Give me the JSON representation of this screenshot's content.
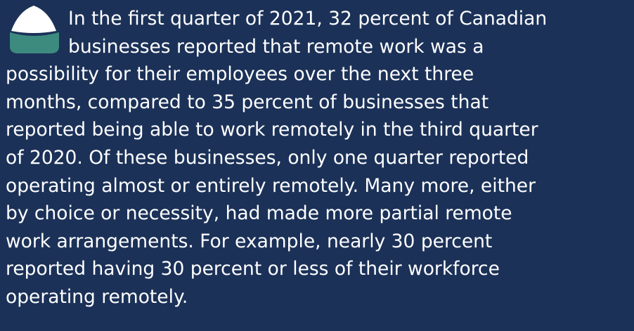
{
  "text": {
    "lines": [
      "In the first quarter of 2021, 32 percent of Canadian",
      "businesses reported that remote work was a",
      "possibility for their employees over the next three",
      "months, compared to 35 percent of businesses that",
      "reported being able to work remotely in the third quarter",
      "of 2020. Of these businesses, only one quarter reported",
      "operating almost or entirely remotely. Many more, either",
      "by choice or necessity, had made more partial remote",
      "work arrangements. For example, nearly 30 percent",
      "reported having 30 percent or less of their workforce",
      "operating remotely."
    ]
  }
}
